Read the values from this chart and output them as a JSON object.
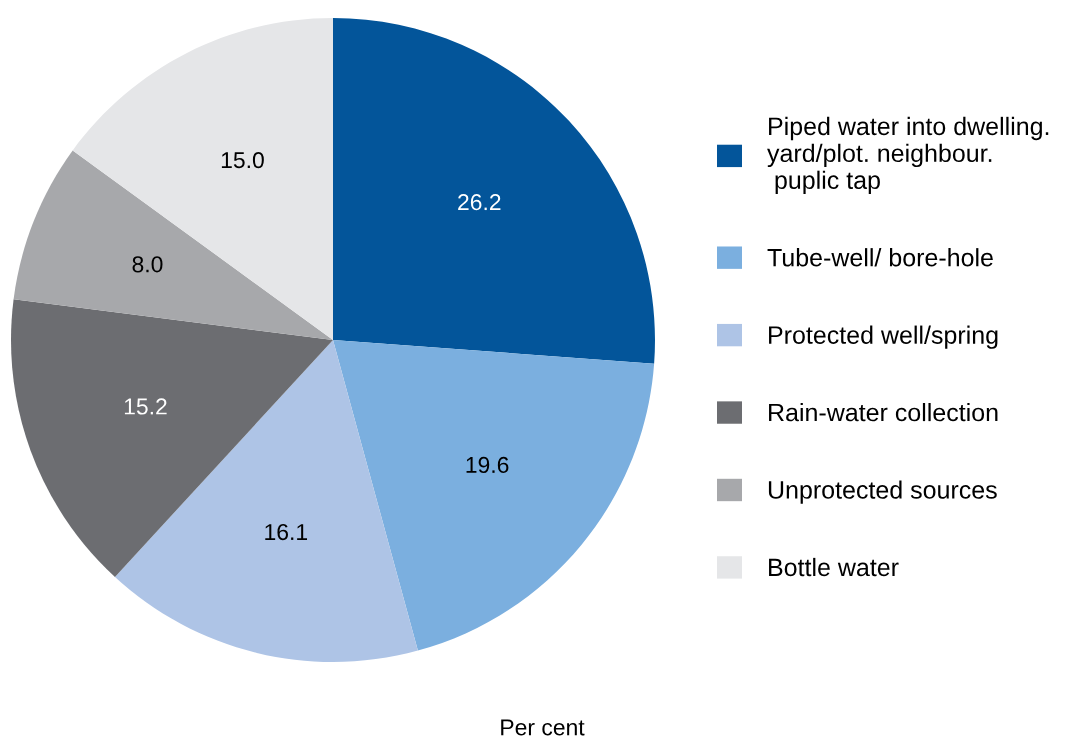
{
  "chart_data": {
    "type": "pie",
    "categories": [
      "Piped water into dwelling.\nyard/plot. neighbour.\n puplic tap",
      "Tube-well/ bore-hole",
      "Protected well/spring",
      "Rain-water collection",
      "Unprotected sources",
      "Bottle water"
    ],
    "values": [
      26.2,
      19.6,
      16.1,
      15.2,
      8.0,
      15.0
    ],
    "value_labels": [
      "26.2",
      "19.6",
      "16.1",
      "15.2",
      "8.0",
      "15.0"
    ],
    "colors": [
      "#03559a",
      "#7bafdf",
      "#aec4e6",
      "#6c6d71",
      "#a7a8ab",
      "#e5e6e8"
    ],
    "legend": "right",
    "annotations": [
      "Per cent"
    ]
  }
}
